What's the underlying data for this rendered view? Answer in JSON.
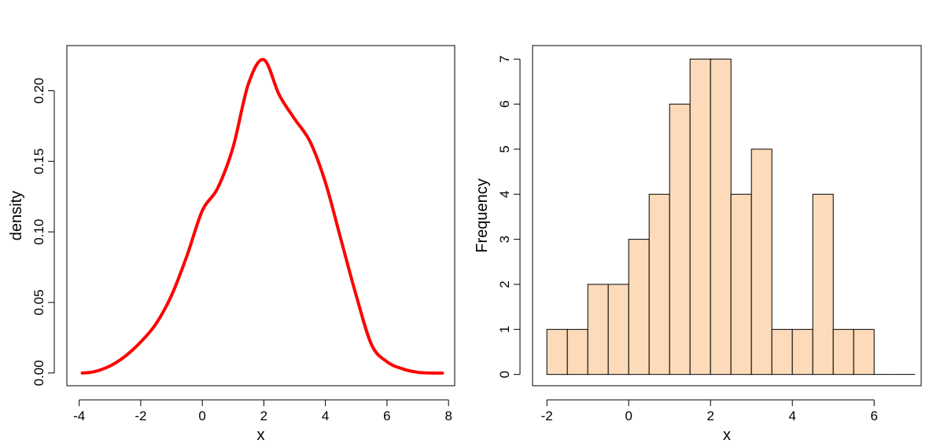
{
  "chart_data": [
    {
      "type": "line",
      "xlabel": "x",
      "ylabel": "density",
      "xlim": [
        -4.4,
        8.2
      ],
      "ylim": [
        -0.009,
        0.232
      ],
      "xticks": [
        -4,
        -2,
        0,
        2,
        4,
        6,
        8
      ],
      "yticks": [
        0.0,
        0.05,
        0.1,
        0.15,
        0.2
      ],
      "x_tick_labels": [
        "-4",
        "-2",
        "0",
        "2",
        "4",
        "6",
        "8"
      ],
      "y_tick_labels": [
        "0.00",
        "0.05",
        "0.10",
        "0.15",
        "0.20"
      ],
      "line_color": "#ff0000",
      "grid": false,
      "series": [
        {
          "x": [
            -3.9,
            -3.5,
            -3.0,
            -2.5,
            -2.0,
            -1.5,
            -1.0,
            -0.5,
            0.0,
            0.5,
            1.0,
            1.5,
            2.0,
            2.5,
            3.0,
            3.5,
            4.0,
            4.5,
            5.0,
            5.5,
            6.0,
            6.5,
            7.0,
            7.5,
            7.8
          ],
          "y": [
            0.0,
            0.001,
            0.005,
            0.012,
            0.022,
            0.035,
            0.055,
            0.083,
            0.115,
            0.131,
            0.16,
            0.205,
            0.222,
            0.197,
            0.18,
            0.164,
            0.135,
            0.095,
            0.055,
            0.02,
            0.008,
            0.003,
            0.0005,
            0.0,
            0.0
          ]
        }
      ]
    },
    {
      "type": "bar",
      "xlabel": "x",
      "ylabel": "Frequency",
      "xlim": [
        -2.35,
        7.15
      ],
      "ylim": [
        -0.25,
        7.3
      ],
      "xticks": [
        -2,
        0,
        2,
        4,
        6
      ],
      "yticks": [
        0,
        1,
        2,
        3,
        4,
        5,
        6,
        7
      ],
      "x_tick_labels": [
        "-2",
        "0",
        "2",
        "4",
        "6"
      ],
      "y_tick_labels": [
        "0",
        "1",
        "2",
        "3",
        "4",
        "5",
        "6",
        "7"
      ],
      "bar_color": "#fddbba",
      "edge_color": "#000000",
      "grid": false,
      "bin_edges": [
        -2.0,
        -1.5,
        -1.0,
        -0.5,
        0.0,
        0.5,
        1.0,
        1.5,
        2.0,
        2.5,
        3.0,
        3.5,
        4.0,
        4.5,
        5.0,
        5.5,
        6.0,
        6.5,
        7.0
      ],
      "counts": [
        1,
        1,
        2,
        2,
        3,
        4,
        6,
        7,
        7,
        4,
        5,
        1,
        1,
        4,
        1,
        1,
        0,
        0
      ]
    }
  ]
}
